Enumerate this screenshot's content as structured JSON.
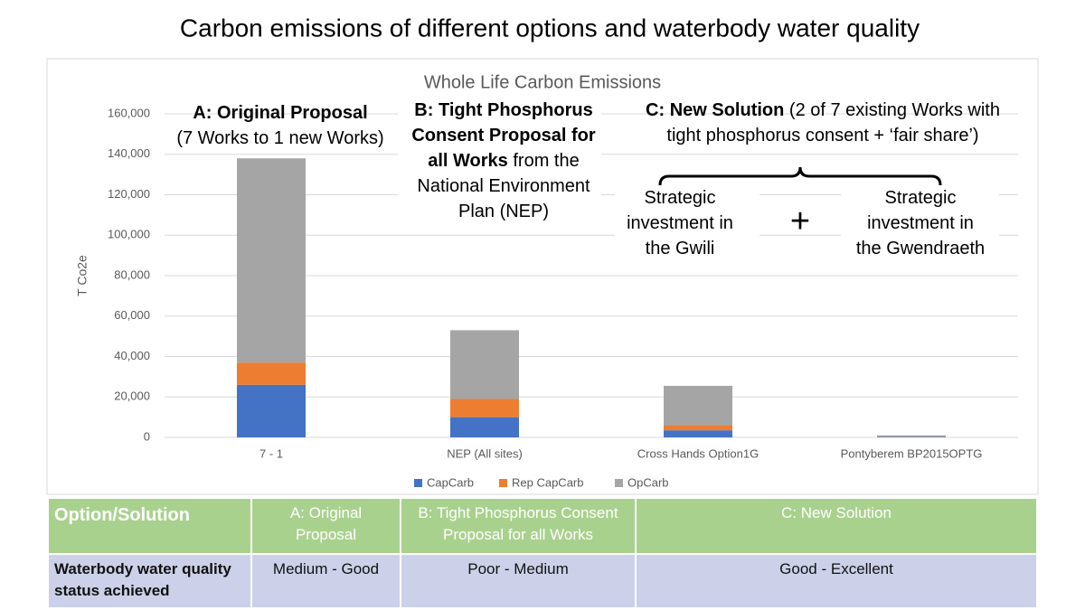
{
  "title": "Carbon emissions of different options and waterbody water quality",
  "chart_data": {
    "type": "stacked_bar",
    "title": "Whole Life Carbon Emissions",
    "ylabel": "T Co2e",
    "categories": [
      "7 - 1",
      "NEP (All sites)",
      "Cross Hands Option1G",
      "Pontyberem BP2015OPTG"
    ],
    "series": [
      {
        "name": "CapCarb",
        "color": "#4472c4",
        "values": [
          26000,
          10000,
          3500,
          300
        ]
      },
      {
        "name": "Rep CapCarb",
        "color": "#ed7d31",
        "values": [
          11000,
          9000,
          2500,
          100
        ]
      },
      {
        "name": "OpCarb",
        "color": "#a5a5a5",
        "values": [
          101000,
          34000,
          19500,
          600
        ]
      }
    ],
    "ylim": [
      0,
      160000
    ],
    "yticks": [
      0,
      {
        "value": 20000,
        "label": "20,000"
      },
      {
        "value": 40000,
        "label": "40,000"
      },
      {
        "value": 60000,
        "label": "60,000"
      },
      {
        "value": 80000,
        "label": "80,000"
      },
      {
        "value": 100000,
        "label": "100,000"
      },
      {
        "value": 120000,
        "label": "120,000"
      },
      {
        "value": 140000,
        "label": "140,000"
      },
      {
        "value": 160000,
        "label": "160,000"
      }
    ],
    "grid": true,
    "legend": "bottom"
  },
  "annotations": [
    {
      "lines": [
        [
          {
            "text": "A: Original Proposal",
            "bold": true
          }
        ],
        [
          {
            "text": "(7 Works to 1 new Works)"
          }
        ]
      ]
    },
    {
      "lines": [
        [
          {
            "text": "B: Tight Phosphorus",
            "bold": true
          }
        ],
        [
          {
            "text": "Consent Proposal for",
            "bold": true
          }
        ],
        [
          {
            "text": "all Works",
            "bold": true
          },
          {
            "text": " from the"
          }
        ],
        [
          {
            "text": "National Environment"
          }
        ],
        [
          {
            "text": "Plan (NEP)"
          }
        ]
      ]
    },
    {
      "lines": [
        [
          {
            "text": "C: New Solution",
            "bold": true
          },
          {
            "text": " (2 of 7 existing Works with"
          }
        ],
        [
          {
            "text": "tight phosphorus consent + ‘fair share’)"
          }
        ]
      ]
    },
    {
      "lines": [
        [
          {
            "text": "Strategic"
          }
        ],
        [
          {
            "text": "investment in"
          }
        ],
        [
          {
            "text": "the Gwili"
          }
        ]
      ]
    },
    {
      "lines": [
        [
          {
            "text": "+"
          }
        ]
      ]
    },
    {
      "lines": [
        [
          {
            "text": "Strategic"
          }
        ],
        [
          {
            "text": "investment in"
          }
        ],
        [
          {
            "text": "the Gwendraeth"
          }
        ]
      ]
    }
  ],
  "table": {
    "header": [
      "Option/Solution",
      "A: Original Proposal",
      "B: Tight Phosphorus Consent Proposal for all Works",
      "C: New Solution"
    ],
    "rows": [
      [
        "Waterbody water quality status achieved",
        "Medium - Good",
        "Poor - Medium",
        "Good - Excellent"
      ]
    ]
  }
}
